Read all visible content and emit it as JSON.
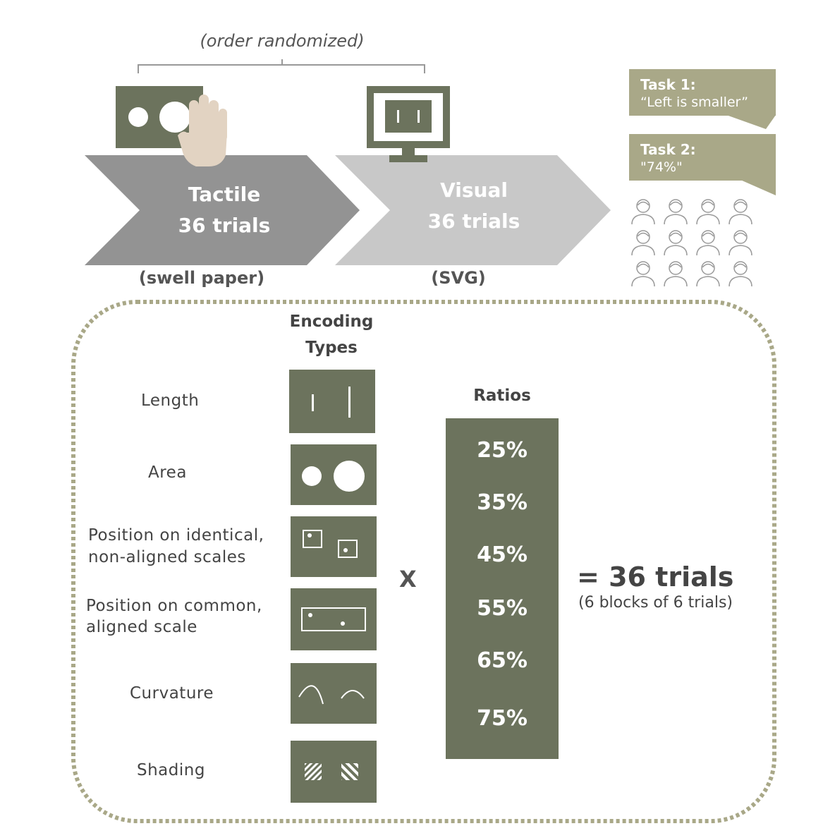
{
  "top": {
    "order_note": "(order randomized)",
    "tactile": {
      "title": "Tactile",
      "trials": "36 trials",
      "medium": "(swell paper)"
    },
    "visual": {
      "title": "Visual",
      "trials": "36 trials",
      "medium": "(SVG)"
    }
  },
  "tasks": [
    {
      "title": "Task 1:",
      "quote": "“Left is smaller”"
    },
    {
      "title": "Task 2:",
      "quote": "\"74%\""
    }
  ],
  "encoding": {
    "header_line1": "Encoding",
    "header_line2": "Types",
    "types": [
      {
        "line1": "Length",
        "line2": "",
        "icon": "length-bars-icon"
      },
      {
        "line1": "Area",
        "line2": "",
        "icon": "area-circles-icon"
      },
      {
        "line1": "Position on identical,",
        "line2": "non-aligned scales",
        "icon": "nonaligned-position-icon"
      },
      {
        "line1": "Position on common,",
        "line2": "aligned scale",
        "icon": "aligned-position-icon"
      },
      {
        "line1": "Curvature",
        "line2": "",
        "icon": "curvature-arcs-icon"
      },
      {
        "line1": "Shading",
        "line2": "",
        "icon": "shading-hatch-icon"
      }
    ]
  },
  "operator": "X",
  "ratios": {
    "header": "Ratios",
    "values": [
      "25%",
      "35%",
      "45%",
      "55%",
      "65%",
      "75%"
    ]
  },
  "result": {
    "total": "= 36 trials",
    "detail": "(6 blocks of 6 trials)"
  },
  "colors": {
    "olive_dark": "#6c735d",
    "olive_light": "#a9a888",
    "tactile_chevron": "#939393",
    "visual_chevron": "#c8c8c8",
    "skin": "#e2d3c2",
    "dotted_border": "#a9a888"
  }
}
